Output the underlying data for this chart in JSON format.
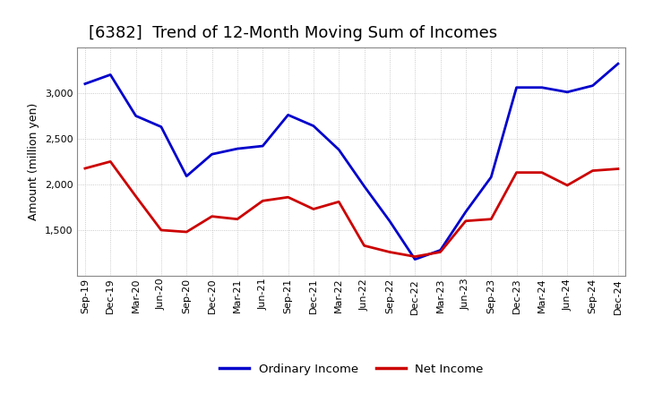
{
  "title": "[6382]  Trend of 12-Month Moving Sum of Incomes",
  "ylabel": "Amount (million yen)",
  "x_labels": [
    "Sep-19",
    "Dec-19",
    "Mar-20",
    "Jun-20",
    "Sep-20",
    "Dec-20",
    "Mar-21",
    "Jun-21",
    "Sep-21",
    "Dec-21",
    "Mar-22",
    "Jun-22",
    "Sep-22",
    "Dec-22",
    "Mar-23",
    "Jun-23",
    "Sep-23",
    "Dec-23",
    "Mar-24",
    "Jun-24",
    "Sep-24",
    "Dec-24"
  ],
  "ordinary_income": [
    3100,
    3200,
    2750,
    2630,
    2090,
    2330,
    2390,
    2420,
    2760,
    2640,
    2380,
    1980,
    1600,
    1180,
    1280,
    1700,
    2080,
    3060,
    3060,
    3010,
    3080,
    3320
  ],
  "net_income": [
    2175,
    2250,
    1870,
    1500,
    1480,
    1650,
    1620,
    1820,
    1860,
    1730,
    1810,
    1330,
    1260,
    1210,
    1260,
    1600,
    1620,
    2130,
    2130,
    1990,
    2150,
    2170
  ],
  "ordinary_color": "#0000cc",
  "net_color": "#cc0000",
  "background_color": "#ffffff",
  "plot_bg_color": "#ffffff",
  "grid_color": "#aaaaaa",
  "ylim_min": 1000,
  "ylim_max": 3500,
  "yticks": [
    1500,
    2000,
    2500,
    3000
  ],
  "line_width": 2.0,
  "title_fontsize": 13,
  "axis_fontsize": 9,
  "tick_fontsize": 8,
  "legend_labels": [
    "Ordinary Income",
    "Net Income"
  ]
}
